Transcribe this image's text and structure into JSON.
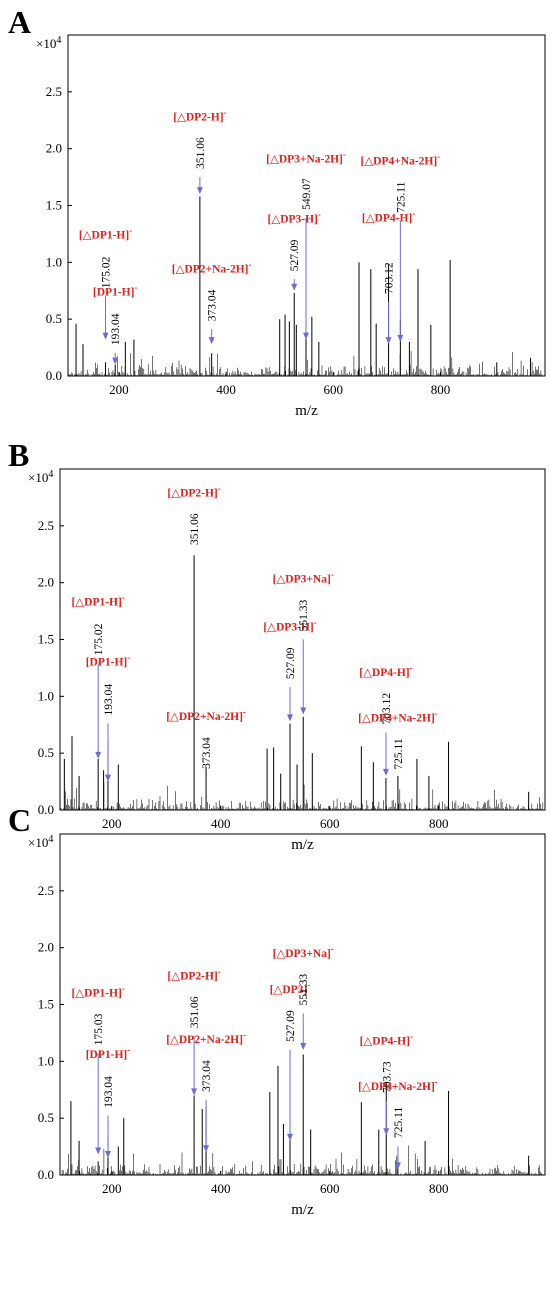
{
  "chart_data": [
    {
      "type": "bar",
      "panel": "A",
      "multiplier": "×10",
      "multiplier_exp": "4",
      "xlabel": "m/z",
      "xlim": [
        105,
        995
      ],
      "ylim": [
        0,
        3.0
      ],
      "xticks": [
        200,
        400,
        600,
        800
      ],
      "yticks": [
        0.0,
        0.5,
        1.0,
        1.5,
        2.0,
        2.5
      ],
      "ytick_labels": [
        "0.0",
        "0.5",
        "1.0",
        "1.5",
        "2.0",
        "2.5"
      ],
      "peaks": [
        {
          "x": 120,
          "y": 0.46
        },
        {
          "x": 133,
          "y": 0.28
        },
        {
          "x": 175.02,
          "y": 0.12
        },
        {
          "x": 193.04,
          "y": 0.1
        },
        {
          "x": 212,
          "y": 0.3
        },
        {
          "x": 228,
          "y": 0.32
        },
        {
          "x": 351.06,
          "y": 1.58
        },
        {
          "x": 373.04,
          "y": 0.2
        },
        {
          "x": 500,
          "y": 0.5
        },
        {
          "x": 510,
          "y": 0.54
        },
        {
          "x": 518,
          "y": 0.48
        },
        {
          "x": 527.09,
          "y": 0.73
        },
        {
          "x": 531,
          "y": 0.45
        },
        {
          "x": 549.07,
          "y": 0.4
        },
        {
          "x": 560,
          "y": 0.52
        },
        {
          "x": 573,
          "y": 0.3
        },
        {
          "x": 648,
          "y": 1.0
        },
        {
          "x": 670,
          "y": 0.94
        },
        {
          "x": 680,
          "y": 0.46
        },
        {
          "x": 703.12,
          "y": 0.98
        },
        {
          "x": 725.11,
          "y": 0.5
        },
        {
          "x": 742,
          "y": 0.3
        },
        {
          "x": 758,
          "y": 0.94
        },
        {
          "x": 782,
          "y": 0.45
        },
        {
          "x": 818,
          "y": 1.02
        },
        {
          "x": 905,
          "y": 0.12
        },
        {
          "x": 968,
          "y": 0.16
        }
      ],
      "annotations": [
        {
          "label": "[△DP1-H]",
          "sup": "-",
          "mz": "175.02",
          "x": 175.02,
          "label_y": 1.21,
          "value_y": 1.05,
          "tip_y": 0.32
        },
        {
          "label": "[DP1-H]",
          "sup": "-",
          "mz": "193.04",
          "x": 193.04,
          "label_y": 0.71,
          "value_y": 0.55,
          "tip_y": 0.1
        },
        {
          "label": "[△DP2-H]",
          "sup": "-",
          "mz": "351.06",
          "x": 351.06,
          "label_y": 2.25,
          "value_y": 2.1,
          "tip_y": 1.6
        },
        {
          "label": "[△DP2+Na-2H]",
          "sup": "-",
          "mz": "373.04",
          "x": 373.04,
          "label_y": 0.91,
          "value_y": 0.76,
          "tip_y": 0.28
        },
        {
          "label": "[△DP3-H]",
          "sup": "-",
          "mz": "527.09",
          "x": 527.09,
          "label_y": 1.35,
          "value_y": 1.2,
          "tip_y": 0.75
        },
        {
          "label": "[△DP3+Na-2H]",
          "sup": "-",
          "mz": "549.07",
          "x": 549.07,
          "label_y": 1.88,
          "value_y": 1.74,
          "tip_y": 0.32
        },
        {
          "label": "[△DP4-H]",
          "sup": "-",
          "mz": "703.12",
          "x": 703.12,
          "label_y": 1.36,
          "value_y": 1.0,
          "tip_y": 0.28
        },
        {
          "label": "[△DP4+Na-2H]",
          "sup": "-",
          "mz": "725.11",
          "x": 725.11,
          "label_y": 1.86,
          "value_y": 1.71,
          "tip_y": 0.3
        }
      ]
    },
    {
      "type": "bar",
      "panel": "B",
      "multiplier": "×10",
      "multiplier_exp": "4",
      "xlabel": "m/z",
      "xlim": [
        105,
        995
      ],
      "ylim": [
        0,
        3.0
      ],
      "xticks": [
        200,
        400,
        600,
        800
      ],
      "yticks": [
        0.0,
        0.5,
        1.0,
        1.5,
        2.0,
        2.5
      ],
      "ytick_labels": [
        "0.0",
        "0.5",
        "1.0",
        "1.5",
        "2.0",
        "2.5"
      ],
      "peaks": [
        {
          "x": 113,
          "y": 0.45
        },
        {
          "x": 127,
          "y": 0.65
        },
        {
          "x": 140,
          "y": 0.3
        },
        {
          "x": 175.02,
          "y": 0.45
        },
        {
          "x": 185,
          "y": 0.35
        },
        {
          "x": 193.04,
          "y": 0.61
        },
        {
          "x": 212,
          "y": 0.4
        },
        {
          "x": 351.06,
          "y": 2.24
        },
        {
          "x": 373.04,
          "y": 0.38
        },
        {
          "x": 485,
          "y": 0.54
        },
        {
          "x": 497,
          "y": 0.55
        },
        {
          "x": 510,
          "y": 0.32
        },
        {
          "x": 527.09,
          "y": 0.76
        },
        {
          "x": 540,
          "y": 0.4
        },
        {
          "x": 551.33,
          "y": 0.82
        },
        {
          "x": 568,
          "y": 0.5
        },
        {
          "x": 658,
          "y": 0.56
        },
        {
          "x": 680,
          "y": 0.42
        },
        {
          "x": 703.12,
          "y": 0.28
        },
        {
          "x": 725.11,
          "y": 0.3
        },
        {
          "x": 760,
          "y": 0.45
        },
        {
          "x": 782,
          "y": 0.3
        },
        {
          "x": 818,
          "y": 0.6
        },
        {
          "x": 965,
          "y": 0.16
        }
      ],
      "annotations": [
        {
          "label": "[△DP1-H]",
          "sup": "-",
          "mz": "175.02",
          "x": 175.02,
          "label_y": 1.8,
          "value_y": 1.64,
          "tip_y": 0.45
        },
        {
          "label": "[DP1-H]",
          "sup": "-",
          "mz": "193.04",
          "x": 193.04,
          "label_y": 1.27,
          "value_y": 1.11,
          "tip_y": 0.25
        },
        {
          "label": "[△DP2-H]",
          "sup": "-",
          "mz": "351.06",
          "x": 351.06,
          "label_y": 2.76,
          "value_y": 2.61,
          "tip_y": 2.6
        },
        {
          "label": "[△DP2+Na-2H]",
          "sup": "-",
          "mz": "373.04",
          "x": 373.04,
          "label_y": 0.79,
          "value_y": 0.64,
          "tip_y": 0.4
        },
        {
          "label": "[△DP3-H]",
          "sup": "-",
          "mz": "527.09",
          "x": 527.09,
          "label_y": 1.58,
          "value_y": 1.43,
          "tip_y": 0.78
        },
        {
          "label": "[△DP3+Na]",
          "sup": "-",
          "mz": "551.33",
          "x": 551.33,
          "label_y": 2.0,
          "value_y": 1.85,
          "tip_y": 0.84
        },
        {
          "label": "[△DP4-H]",
          "sup": "-",
          "mz": "703.12",
          "x": 703.12,
          "label_y": 1.18,
          "value_y": 1.03,
          "tip_y": 0.3
        },
        {
          "label": "[△DP4+Na-2H]",
          "sup": "-",
          "mz": "725.11",
          "x": 725.11,
          "label_y": 0.78,
          "value_y": 0.63,
          "tip_y": 0.3
        }
      ]
    },
    {
      "type": "bar",
      "panel": "C",
      "multiplier": "×10",
      "multiplier_exp": "4",
      "xlabel": "m/z",
      "xlim": [
        105,
        995
      ],
      "ylim": [
        0,
        3.0
      ],
      "xticks": [
        200,
        400,
        600,
        800
      ],
      "yticks": [
        0.0,
        0.5,
        1.0,
        1.5,
        2.0,
        2.5
      ],
      "ytick_labels": [
        "0.0",
        "0.5",
        "1.0",
        "1.5",
        "2.0",
        "2.5"
      ],
      "peaks": [
        {
          "x": 125,
          "y": 0.65
        },
        {
          "x": 140,
          "y": 0.3
        },
        {
          "x": 175.03,
          "y": 0.12
        },
        {
          "x": 193.04,
          "y": 0.35
        },
        {
          "x": 212,
          "y": 0.25
        },
        {
          "x": 222,
          "y": 0.5
        },
        {
          "x": 351.06,
          "y": 0.7
        },
        {
          "x": 366,
          "y": 0.58
        },
        {
          "x": 373.04,
          "y": 0.6
        },
        {
          "x": 490,
          "y": 0.73
        },
        {
          "x": 505,
          "y": 0.96
        },
        {
          "x": 515,
          "y": 0.45
        },
        {
          "x": 527.09,
          "y": 1.08
        },
        {
          "x": 551.33,
          "y": 1.06
        },
        {
          "x": 565,
          "y": 0.4
        },
        {
          "x": 658,
          "y": 0.64
        },
        {
          "x": 690,
          "y": 0.4
        },
        {
          "x": 703.73,
          "y": 0.82
        },
        {
          "x": 725.11,
          "y": 0.15
        },
        {
          "x": 775,
          "y": 0.3
        },
        {
          "x": 818,
          "y": 0.74
        },
        {
          "x": 965,
          "y": 0.17
        }
      ],
      "annotations": [
        {
          "label": "[△DP1-H]",
          "sup": "-",
          "mz": "175.03",
          "x": 175.03,
          "label_y": 1.57,
          "value_y": 1.42,
          "tip_y": 0.18
        },
        {
          "label": "[DP1-H]",
          "sup": "-",
          "mz": "193.04",
          "x": 193.04,
          "label_y": 1.03,
          "value_y": 0.87,
          "tip_y": 0.15
        },
        {
          "label": "[△DP2-H]",
          "sup": "-",
          "mz": "351.06",
          "x": 351.06,
          "label_y": 1.72,
          "value_y": 1.57,
          "tip_y": 0.7
        },
        {
          "label": "[△DP2+Na-2H]",
          "sup": "-",
          "mz": "373.04",
          "x": 373.04,
          "label_y": 1.16,
          "value_y": 1.01,
          "tip_y": 0.2
        },
        {
          "label": "[△DP3]",
          "sup": "-",
          "mz": "527.09",
          "x": 527.09,
          "label_y": 1.6,
          "value_y": 1.45,
          "tip_y": 0.3
        },
        {
          "label": "[△DP3+Na]",
          "sup": "-",
          "mz": "551.33",
          "x": 551.33,
          "label_y": 1.92,
          "value_y": 1.77,
          "tip_y": 1.1
        },
        {
          "label": "[△DP4-H]",
          "sup": "-",
          "mz": "703.73",
          "x": 703.73,
          "label_y": 1.15,
          "value_y": 1.0,
          "tip_y": 0.35
        },
        {
          "label": "[△DP4+Na-2H]",
          "sup": "-",
          "mz": "725.11",
          "x": 725.11,
          "label_y": 0.75,
          "value_y": 0.6,
          "tip_y": 0.05
        }
      ]
    }
  ]
}
